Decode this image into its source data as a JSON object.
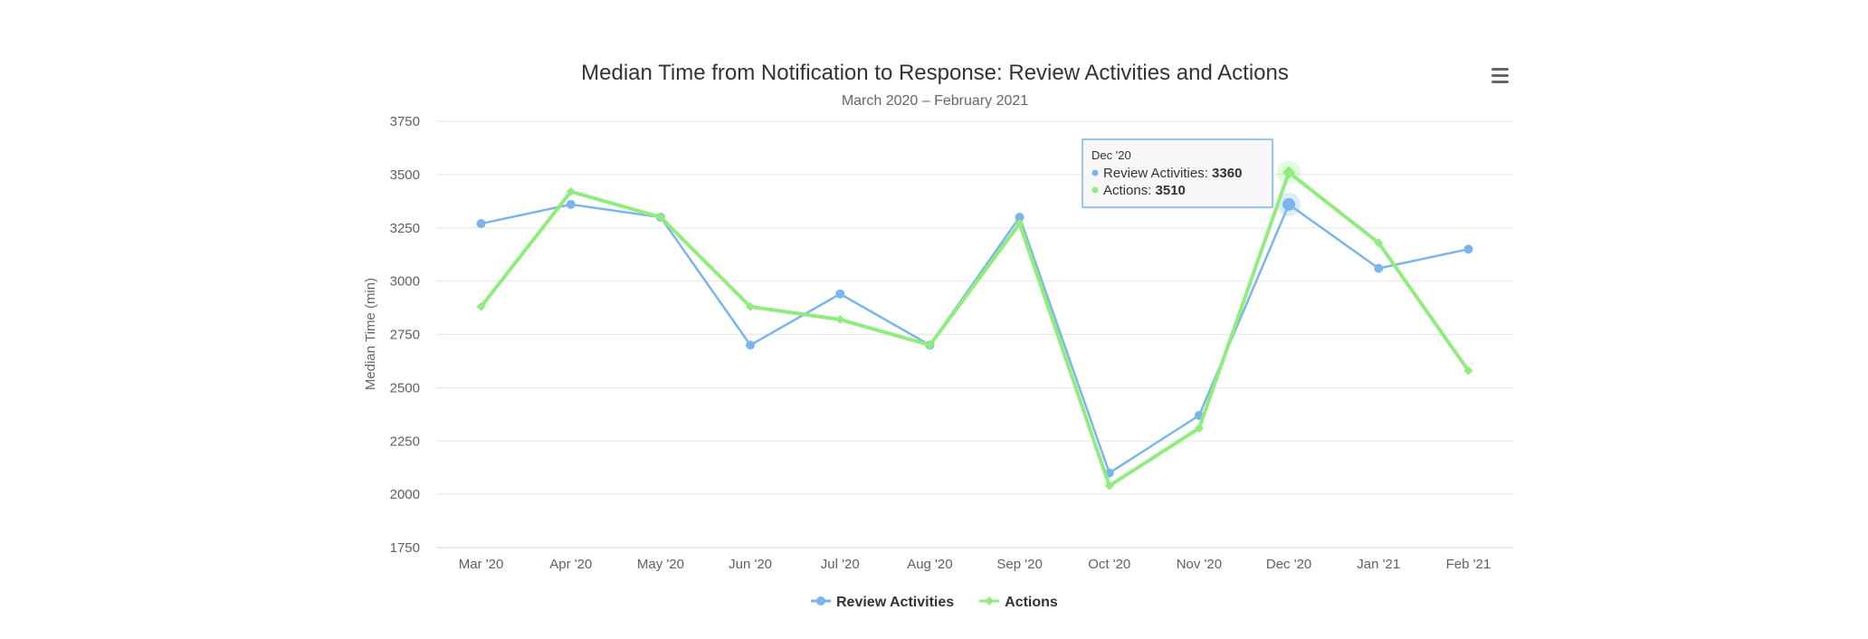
{
  "chart_data": {
    "type": "line",
    "title": "Median Time from Notification to Response: Review Activities and Actions",
    "subtitle": "March 2020 – February 2021",
    "xlabel": "",
    "ylabel": "Median Time (min)",
    "ylim": [
      1750,
      3750
    ],
    "yticks": [
      1750,
      2000,
      2250,
      2500,
      2750,
      3000,
      3250,
      3500,
      3750
    ],
    "grid": true,
    "legend_position": "bottom",
    "categories": [
      "Mar '20",
      "Apr '20",
      "May '20",
      "Jun '20",
      "Jul '20",
      "Aug '20",
      "Sep '20",
      "Oct '20",
      "Nov '20",
      "Dec '20",
      "Jan '21",
      "Feb '21"
    ],
    "series": [
      {
        "name": "Review Activities",
        "color": "#7cb5ec",
        "marker": "circle",
        "values": [
          3270,
          3360,
          3300,
          2700,
          2940,
          2700,
          3300,
          2100,
          2370,
          3360,
          3060,
          3150
        ]
      },
      {
        "name": "Actions",
        "color": "#90ed7d",
        "marker": "diamond",
        "values": [
          2880,
          3420,
          3300,
          2880,
          2820,
          2700,
          3270,
          2040,
          2310,
          3510,
          3180,
          2580
        ]
      }
    ],
    "tooltip": {
      "category": "Dec '20",
      "index": 9,
      "rows": [
        {
          "label": "Review Activities",
          "value": "3360"
        },
        {
          "label": "Actions",
          "value": "3510"
        }
      ]
    }
  },
  "menu_icon": "hamburger-menu-icon"
}
